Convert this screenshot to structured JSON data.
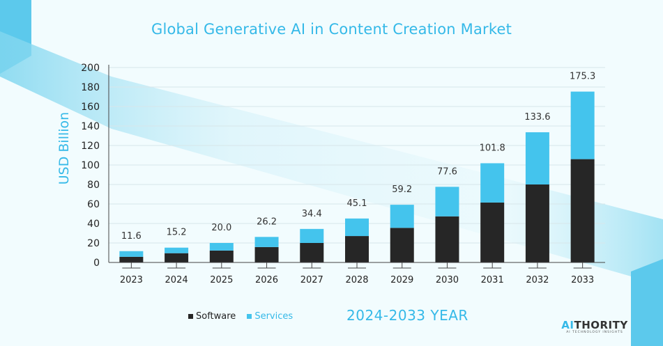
{
  "chart_data": {
    "type": "bar",
    "stacked": true,
    "title": "Global Generative AI in Content Creation Market",
    "ylabel": "USD Billion",
    "xlabel": "2024-2033  YEAR",
    "ylim": [
      0,
      200
    ],
    "yticks": [
      "0",
      "20",
      "40",
      "60",
      "80",
      "100",
      "120",
      "140",
      "160",
      "180",
      "200"
    ],
    "categories": [
      "2023",
      "2024",
      "2025",
      "2026",
      "2027",
      "2028",
      "2029",
      "2030",
      "2031",
      "2032",
      "2033"
    ],
    "series": [
      {
        "name": "Software",
        "color": "#262626",
        "values": [
          5.8,
          9.5,
          12.2,
          15.8,
          20.0,
          27.1,
          35.5,
          47.3,
          61.5,
          80.0,
          106.0
        ]
      },
      {
        "name": "Services",
        "color": "#44c4ed",
        "values": [
          5.8,
          5.7,
          7.8,
          10.4,
          14.4,
          18.0,
          23.7,
          30.3,
          40.3,
          53.6,
          69.3
        ]
      }
    ],
    "totals": [
      "11.6",
      "15.2",
      "20.0",
      "26.2",
      "34.4",
      "45.1",
      "59.2",
      "77.6",
      "101.8",
      "133.6",
      "175.3"
    ],
    "legend": "bottom-left"
  },
  "logo": {
    "prefix": "AI",
    "suffix": "THORITY",
    "tagline": "AI TECHNOLOGY INSIGHTS"
  }
}
